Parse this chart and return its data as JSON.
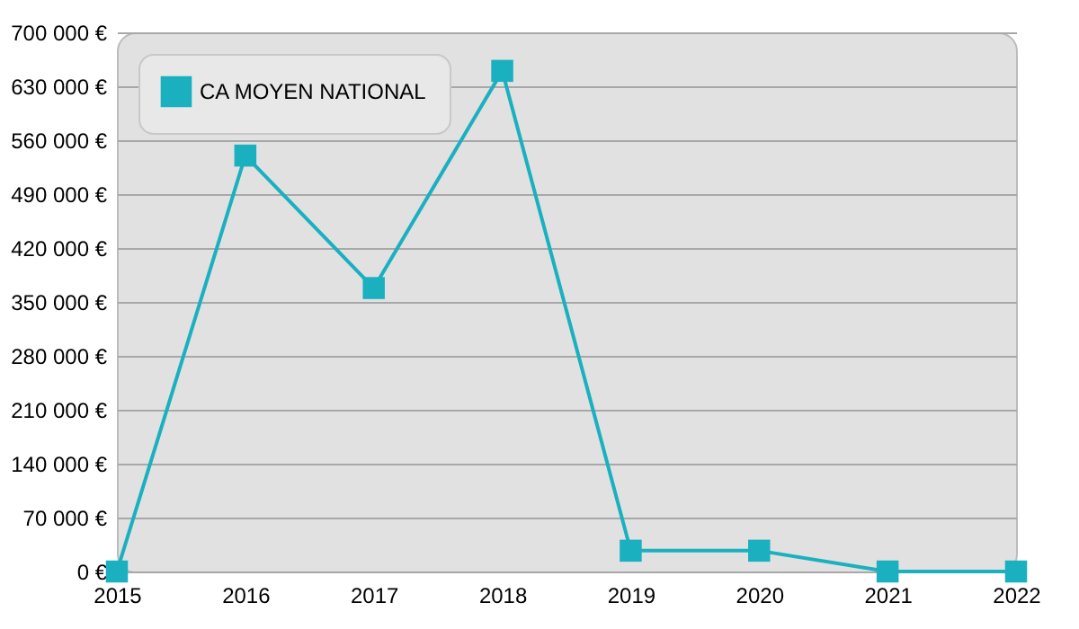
{
  "chart_data": {
    "type": "line",
    "x": [
      2015,
      2016,
      2017,
      2018,
      2019,
      2020,
      2021,
      2022
    ],
    "series": [
      {
        "name": "CA MOYEN NATIONAL",
        "color": "#1ab0c0",
        "values": [
          0,
          540000,
          368000,
          650000,
          27000,
          27000,
          0,
          0
        ]
      }
    ],
    "xlim": [
      2015,
      2022
    ],
    "xticks": [
      2015,
      2016,
      2017,
      2018,
      2019,
      2020,
      2021,
      2022
    ],
    "ylim": [
      0,
      700000
    ],
    "yticks": [
      {
        "value": 0,
        "label": "0 €"
      },
      {
        "value": 70000,
        "label": "70 000 €"
      },
      {
        "value": 140000,
        "label": "140 000 €"
      },
      {
        "value": 210000,
        "label": "210 000 €"
      },
      {
        "value": 280000,
        "label": "280 000 €"
      },
      {
        "value": 350000,
        "label": "350 000 €"
      },
      {
        "value": 420000,
        "label": "420 000 €"
      },
      {
        "value": 490000,
        "label": "490 000 €"
      },
      {
        "value": 560000,
        "label": "560 000 €"
      },
      {
        "value": 630000,
        "label": "630 000 €"
      },
      {
        "value": 700000,
        "label": "700 000 €"
      }
    ],
    "grid": "y",
    "legend": "top left",
    "marker": "square",
    "line_style": "solid"
  }
}
